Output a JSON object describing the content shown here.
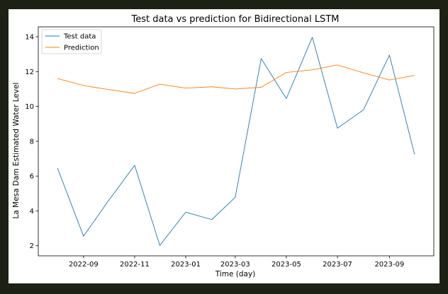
{
  "chart_data": {
    "type": "line",
    "title": "Test data vs prediction for Bidirectional LSTM",
    "xlabel": "Time (day)",
    "ylabel": "La Mesa Dam Estimated Water Level",
    "x": [
      "2022-08-01",
      "2022-09-01",
      "2022-10-01",
      "2022-11-01",
      "2022-12-01",
      "2023-01-01",
      "2023-02-01",
      "2023-03-01",
      "2023-04-01",
      "2023-05-01",
      "2023-06-01",
      "2023-07-01",
      "2023-08-01",
      "2023-09-01",
      "2023-10-01"
    ],
    "series": [
      {
        "name": "Test data",
        "color": "#1f77b4",
        "values": [
          6.45,
          2.55,
          4.6,
          6.62,
          2.02,
          3.93,
          3.5,
          4.78,
          12.75,
          10.45,
          13.97,
          8.75,
          9.8,
          12.95,
          7.25
        ]
      },
      {
        "name": "Prediction",
        "color": "#ff7f0e",
        "values": [
          11.6,
          11.2,
          10.97,
          10.75,
          11.28,
          11.05,
          11.13,
          11.0,
          11.1,
          11.95,
          12.1,
          12.38,
          11.93,
          11.52,
          11.78
        ]
      }
    ],
    "xticks": [
      {
        "date": "2022-09-01",
        "label": "2022-09"
      },
      {
        "date": "2022-11-01",
        "label": "2022-11"
      },
      {
        "date": "2023-01-01",
        "label": "2023-01"
      },
      {
        "date": "2023-03-01",
        "label": "2023-03"
      },
      {
        "date": "2023-05-01",
        "label": "2023-05"
      },
      {
        "date": "2023-07-01",
        "label": "2023-07"
      },
      {
        "date": "2023-09-01",
        "label": "2023-09"
      }
    ],
    "xlim": [
      "2022-07-09",
      "2023-10-24"
    ],
    "yticks": [
      2,
      4,
      6,
      8,
      10,
      12,
      14
    ],
    "ylim": [
      1.42,
      14.57
    ],
    "grid": false,
    "legend": "top-left"
  }
}
